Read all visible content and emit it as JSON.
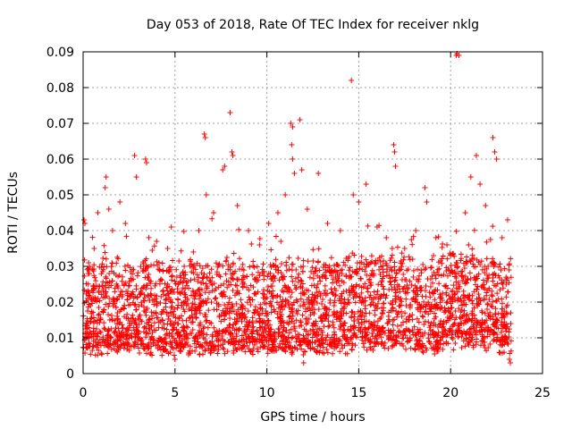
{
  "chart_data": {
    "type": "scatter",
    "title": "Day 053 of 2018, Rate Of TEC Index for receiver nklg",
    "xlabel": "GPS time / hours",
    "ylabel": "ROTI / TECUs",
    "xlim": [
      0,
      25
    ],
    "ylim": [
      0,
      0.09
    ],
    "xticks": [
      0,
      5,
      10,
      15,
      20,
      25
    ],
    "xtick_labels": [
      "0",
      "5",
      "10",
      "15",
      "20",
      "25"
    ],
    "yticks": [
      0,
      0.01,
      0.02,
      0.03,
      0.04,
      0.05,
      0.06,
      0.07,
      0.08,
      0.09
    ],
    "ytick_labels": [
      "0",
      "0.01",
      "0.02",
      "0.03",
      "0.04",
      "0.05",
      "0.06",
      "0.07",
      "0.08",
      "0.09"
    ],
    "grid": true,
    "marker": "+",
    "color": "#ff0000",
    "series": [
      {
        "name": "ROTI",
        "time_range_hours": [
          0,
          23.3
        ],
        "typical_range": [
          0.005,
          0.03
        ],
        "points": [
          [
            0.05,
            0.043
          ],
          [
            0.1,
            0.042
          ],
          [
            0.3,
            0.031
          ],
          [
            0.6,
            0.035
          ],
          [
            0.8,
            0.045
          ],
          [
            1.2,
            0.052
          ],
          [
            1.25,
            0.055
          ],
          [
            1.4,
            0.046
          ],
          [
            1.6,
            0.04
          ],
          [
            2.0,
            0.048
          ],
          [
            2.3,
            0.042
          ],
          [
            2.8,
            0.061
          ],
          [
            2.9,
            0.055
          ],
          [
            3.4,
            0.06
          ],
          [
            3.45,
            0.059
          ],
          [
            4.0,
            0.037
          ],
          [
            4.6,
            0.035
          ],
          [
            4.8,
            0.041
          ],
          [
            5.1,
            0.027
          ],
          [
            5.5,
            0.03
          ],
          [
            6.0,
            0.034
          ],
          [
            6.3,
            0.04
          ],
          [
            6.6,
            0.067
          ],
          [
            6.65,
            0.066
          ],
          [
            6.7,
            0.05
          ],
          [
            7.1,
            0.045
          ],
          [
            7.6,
            0.057
          ],
          [
            7.7,
            0.058
          ],
          [
            8.0,
            0.073
          ],
          [
            8.1,
            0.062
          ],
          [
            8.15,
            0.061
          ],
          [
            8.4,
            0.047
          ],
          [
            9.0,
            0.04
          ],
          [
            9.6,
            0.036
          ],
          [
            10.1,
            0.042
          ],
          [
            10.6,
            0.045
          ],
          [
            11.0,
            0.05
          ],
          [
            11.3,
            0.07
          ],
          [
            11.4,
            0.069
          ],
          [
            11.35,
            0.064
          ],
          [
            11.4,
            0.06
          ],
          [
            11.5,
            0.056
          ],
          [
            11.8,
            0.071
          ],
          [
            11.9,
            0.057
          ],
          [
            12.2,
            0.046
          ],
          [
            12.8,
            0.056
          ],
          [
            13.3,
            0.042
          ],
          [
            14.0,
            0.04
          ],
          [
            14.6,
            0.082
          ],
          [
            14.7,
            0.05
          ],
          [
            15.0,
            0.048
          ],
          [
            15.4,
            0.053
          ],
          [
            16.0,
            0.041
          ],
          [
            16.5,
            0.038
          ],
          [
            16.9,
            0.064
          ],
          [
            16.95,
            0.062
          ],
          [
            17.0,
            0.058
          ],
          [
            17.5,
            0.035
          ],
          [
            18.1,
            0.04
          ],
          [
            18.6,
            0.052
          ],
          [
            18.7,
            0.048
          ],
          [
            19.2,
            0.038
          ],
          [
            19.8,
            0.036
          ],
          [
            20.3,
            0.089
          ],
          [
            20.35,
            0.0895
          ],
          [
            20.45,
            0.089
          ],
          [
            20.8,
            0.045
          ],
          [
            21.1,
            0.055
          ],
          [
            21.4,
            0.061
          ],
          [
            21.6,
            0.053
          ],
          [
            21.9,
            0.047
          ],
          [
            22.3,
            0.066
          ],
          [
            22.4,
            0.062
          ],
          [
            22.5,
            0.06
          ],
          [
            22.8,
            0.038
          ],
          [
            23.1,
            0.043
          ],
          [
            23.2,
            0.004
          ],
          [
            23.25,
            0.003
          ],
          [
            12.0,
            0.003
          ],
          [
            5.0,
            0.004
          ]
        ]
      }
    ]
  }
}
